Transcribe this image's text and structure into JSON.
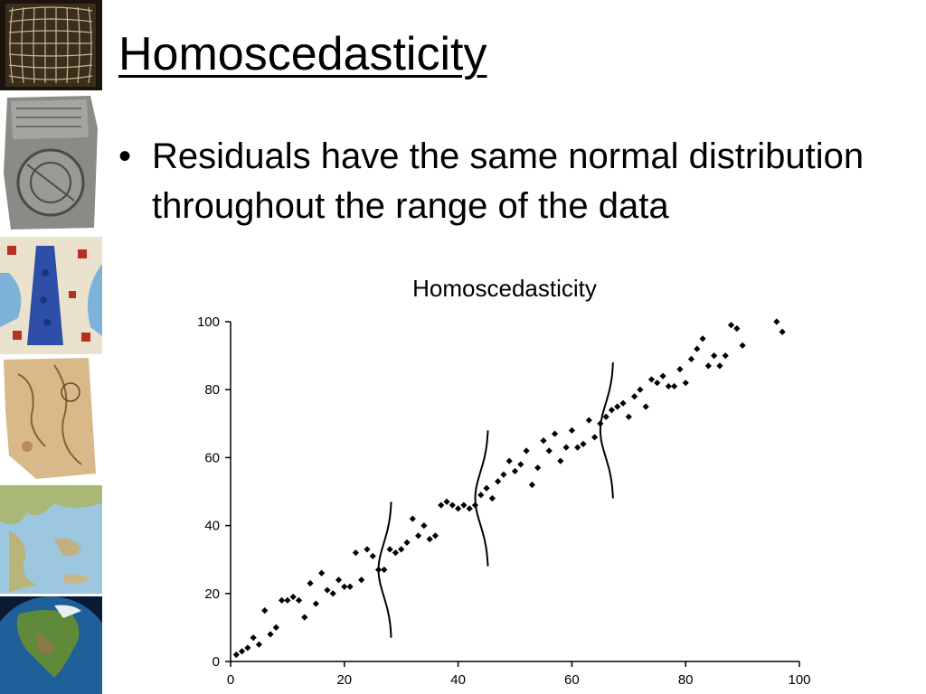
{
  "slide": {
    "title": "Homoscedasticity",
    "bullets": [
      {
        "text": "Residuals have the same normal distribution throughout the range of the data"
      }
    ]
  },
  "sidebar_images": [
    "grid-map-icon",
    "clay-tablet-map-icon",
    "medieval-map-icon",
    "parchment-map-icon",
    "relief-map-greece-icon",
    "globe-north-america-icon"
  ],
  "chart_data": {
    "type": "scatter",
    "title": "Homoscedasticity",
    "xlabel": "",
    "ylabel": "",
    "xlim": [
      0,
      100
    ],
    "ylim": [
      0,
      100
    ],
    "xticks": [
      0,
      20,
      40,
      60,
      80,
      100
    ],
    "yticks": [
      0,
      20,
      40,
      60,
      80,
      100
    ],
    "grid": false,
    "legend": "none",
    "marker_color": "#000000",
    "points": [
      [
        1,
        2
      ],
      [
        2,
        3
      ],
      [
        3,
        4
      ],
      [
        4,
        7
      ],
      [
        5,
        5
      ],
      [
        6,
        15
      ],
      [
        7,
        8
      ],
      [
        8,
        10
      ],
      [
        9,
        18
      ],
      [
        10,
        18
      ],
      [
        11,
        19
      ],
      [
        12,
        18
      ],
      [
        13,
        13
      ],
      [
        14,
        23
      ],
      [
        15,
        17
      ],
      [
        16,
        26
      ],
      [
        17,
        21
      ],
      [
        18,
        20
      ],
      [
        19,
        24
      ],
      [
        20,
        22
      ],
      [
        21,
        22
      ],
      [
        22,
        32
      ],
      [
        23,
        24
      ],
      [
        24,
        33
      ],
      [
        25,
        31
      ],
      [
        26,
        27
      ],
      [
        27,
        27
      ],
      [
        28,
        33
      ],
      [
        29,
        32
      ],
      [
        30,
        33
      ],
      [
        31,
        35
      ],
      [
        32,
        42
      ],
      [
        33,
        37
      ],
      [
        34,
        40
      ],
      [
        35,
        36
      ],
      [
        36,
        37
      ],
      [
        37,
        46
      ],
      [
        38,
        47
      ],
      [
        39,
        46
      ],
      [
        40,
        45
      ],
      [
        41,
        46
      ],
      [
        42,
        45
      ],
      [
        43,
        46
      ],
      [
        44,
        49
      ],
      [
        45,
        51
      ],
      [
        46,
        48
      ],
      [
        47,
        53
      ],
      [
        48,
        55
      ],
      [
        49,
        59
      ],
      [
        50,
        56
      ],
      [
        51,
        58
      ],
      [
        52,
        62
      ],
      [
        53,
        52
      ],
      [
        54,
        57
      ],
      [
        55,
        65
      ],
      [
        56,
        62
      ],
      [
        57,
        67
      ],
      [
        58,
        59
      ],
      [
        59,
        63
      ],
      [
        60,
        68
      ],
      [
        61,
        63
      ],
      [
        62,
        64
      ],
      [
        63,
        71
      ],
      [
        64,
        66
      ],
      [
        65,
        70
      ],
      [
        66,
        72
      ],
      [
        67,
        74
      ],
      [
        68,
        75
      ],
      [
        69,
        76
      ],
      [
        70,
        72
      ],
      [
        71,
        78
      ],
      [
        72,
        80
      ],
      [
        73,
        75
      ],
      [
        74,
        83
      ],
      [
        75,
        82
      ],
      [
        76,
        84
      ],
      [
        77,
        81
      ],
      [
        78,
        81
      ],
      [
        79,
        86
      ],
      [
        80,
        82
      ],
      [
        81,
        89
      ],
      [
        82,
        92
      ],
      [
        83,
        95
      ],
      [
        84,
        87
      ],
      [
        85,
        90
      ],
      [
        86,
        87
      ],
      [
        87,
        90
      ],
      [
        88,
        99
      ],
      [
        89,
        98
      ],
      [
        90,
        93
      ],
      [
        96,
        100
      ],
      [
        97,
        97
      ]
    ],
    "distribution_curves": [
      {
        "x_center": 27.5,
        "y_center": 27,
        "half_height": 20,
        "amplitude": 2.3
      },
      {
        "x_center": 44.5,
        "y_center": 48,
        "half_height": 20,
        "amplitude": 2.3
      },
      {
        "x_center": 66.5,
        "y_center": 68,
        "half_height": 20,
        "amplitude": 2.3
      }
    ]
  }
}
